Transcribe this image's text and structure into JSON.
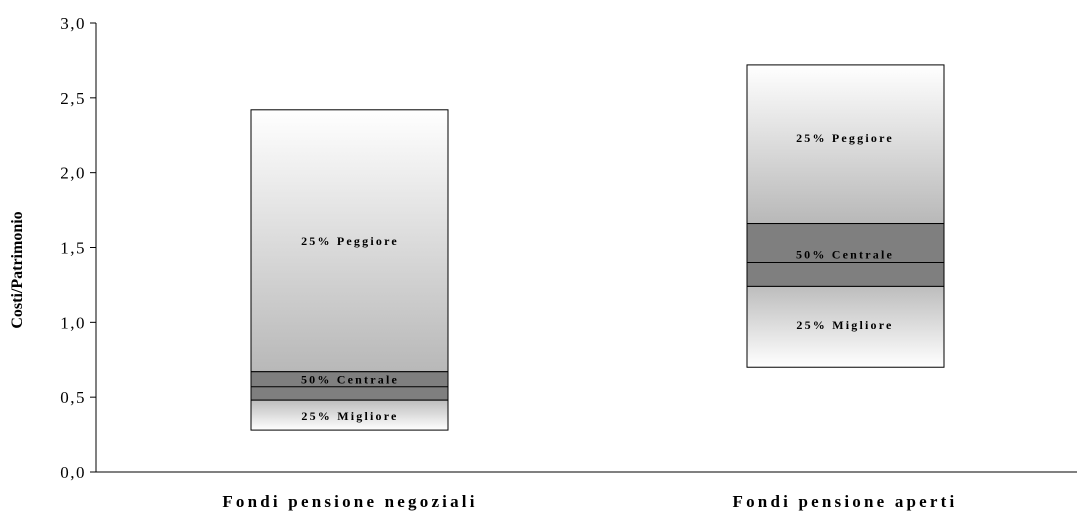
{
  "chart_data": {
    "type": "bar",
    "subtype": "stacked-floating-range",
    "title": "",
    "xlabel": "",
    "ylabel": "Costi/Patrimonio",
    "ylim": [
      0,
      3.0
    ],
    "y_ticks": [
      "0,0",
      "0,5",
      "1,0",
      "1,5",
      "2,0",
      "2,5",
      "3,0"
    ],
    "grid": false,
    "legend": "none",
    "categories": [
      "Fondi pensione negoziali",
      "Fondi pensione aperti"
    ],
    "bars": [
      {
        "category": "Fondi pensione negoziali",
        "min": 0.28,
        "q1": 0.48,
        "median": 0.57,
        "q3": 0.67,
        "max": 2.42
      },
      {
        "category": "Fondi pensione aperti",
        "min": 0.7,
        "q1": 1.24,
        "median": 1.4,
        "q3": 1.66,
        "max": 2.72
      }
    ],
    "segment_labels": {
      "lower": "25% Migliore",
      "middle": "50% Centrale",
      "upper": "25% Peggiore"
    },
    "colors": {
      "middle": "#7f7f7f",
      "upper_light": "#ffffff",
      "upper_dark": "#b8b8b8",
      "lower_light": "#ffffff",
      "lower_dark": "#bdbdbd",
      "outline": "#000000"
    }
  }
}
